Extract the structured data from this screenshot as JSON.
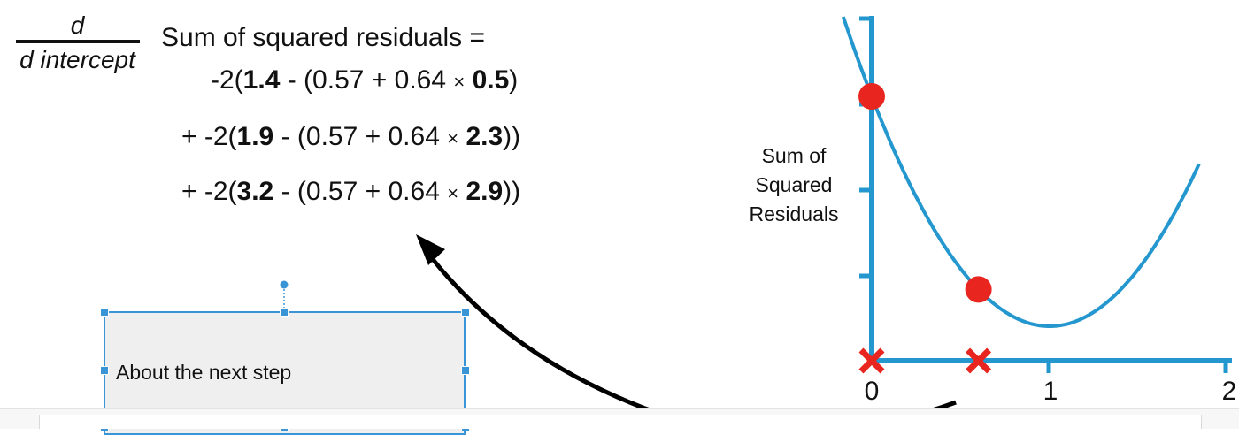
{
  "derivative": {
    "numerator": "d",
    "denominator": "d intercept",
    "title": "Sum of squared residuals ="
  },
  "terms": [
    {
      "prefix": "-2(",
      "observed": "1.4",
      "open": " - (",
      "intercept": "0.57",
      "plus": " + ",
      "slope": "0.64",
      "times": "×",
      "x": "0.5",
      "close": ")"
    },
    {
      "prefix": "+ -2(",
      "observed": "1.9",
      "open": " - (",
      "intercept": "0.57",
      "plus": " + ",
      "slope": "0.64",
      "times": "×",
      "x": "2.3",
      "close": "))"
    },
    {
      "prefix": "+ -2(",
      "observed": "3.2",
      "open": " - (",
      "intercept": "0.57",
      "plus": " + ",
      "slope": "0.64",
      "times": "×",
      "x": "2.9",
      "close": "))"
    }
  ],
  "textbox": {
    "label": "About the next step"
  },
  "graph": {
    "ylabel_lines": [
      "Sum of",
      "Squared",
      "Residuals"
    ],
    "xlabel": "Intercept",
    "x_ticks": [
      "0",
      "1",
      "2"
    ],
    "x_range": [
      0,
      2
    ],
    "curve": {
      "min_intercept": 1,
      "min_value": 0.15,
      "k": 1.0
    },
    "points": [
      {
        "intercept": 0
      },
      {
        "intercept": 0.6
      }
    ],
    "x_markers": [
      {
        "intercept": 0
      },
      {
        "intercept": 0.6
      }
    ],
    "colors": {
      "axis": "#2597cf",
      "curve": "#2597cf",
      "point": "#e8261f",
      "marker": "#e8261f",
      "arrow": "#000000"
    }
  }
}
